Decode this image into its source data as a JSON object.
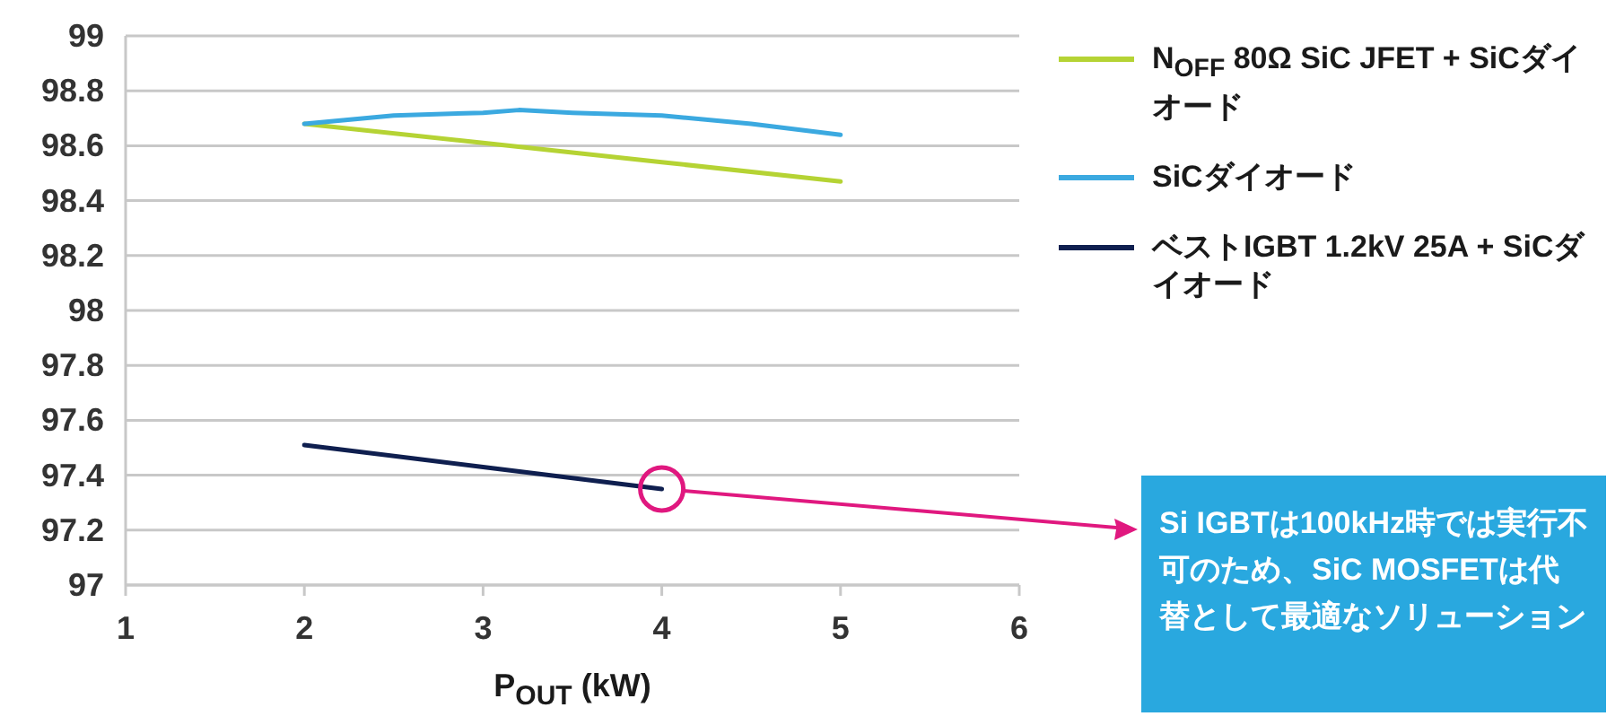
{
  "chart_data": {
    "type": "line",
    "xlabel": "P$_{OUT}$ (kW)",
    "xlim": [
      1,
      6
    ],
    "xticks": [
      1,
      2,
      3,
      4,
      5,
      6
    ],
    "ylim": [
      97,
      99
    ],
    "yticks": [
      97,
      97.2,
      97.4,
      97.6,
      97.8,
      98,
      98.2,
      98.4,
      98.6,
      98.8,
      99
    ],
    "grid": "y",
    "legend": "right",
    "marker": "none",
    "line_style": "solid",
    "series": [
      {
        "name": "N$_{OFF}$ 80Ω SiC JFET + SiCダイオード",
        "color": "#b5d334",
        "x": [
          2,
          3,
          4,
          5
        ],
        "values": [
          98.68,
          98.61,
          98.54,
          98.47
        ]
      },
      {
        "name": "SiCダイオード",
        "color": "#3ba9e0",
        "x": [
          2,
          2.5,
          3,
          3.2,
          3.5,
          4,
          4.5,
          5
        ],
        "values": [
          98.68,
          98.71,
          98.72,
          98.73,
          98.72,
          98.71,
          98.68,
          98.64
        ]
      },
      {
        "name": "ベストIGBT 1.2kV 25A + SiCダイオード",
        "color": "#0f1f4f",
        "x": [
          2,
          3,
          4
        ],
        "values": [
          97.51,
          97.43,
          97.35
        ]
      }
    ],
    "annotations": [
      "Si IGBTは100kHz時では実行不可のため、SiC MOSFETは代替として最適なソリューション"
    ]
  }
}
